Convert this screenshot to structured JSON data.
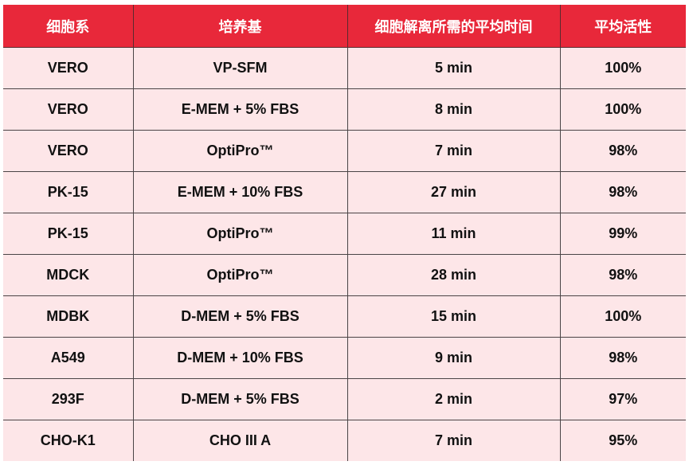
{
  "table": {
    "headers": [
      "细胞系",
      "培养基",
      "细胞解离所需的平均时间",
      "平均活性"
    ],
    "rows": [
      [
        "VERO",
        "VP-SFM",
        "5 min",
        "100%"
      ],
      [
        "VERO",
        "E-MEM + 5% FBS",
        "8 min",
        "100%"
      ],
      [
        "VERO",
        "OptiPro™",
        "7 min",
        "98%"
      ],
      [
        "PK-15",
        "E-MEM + 10% FBS",
        "27 min",
        "98%"
      ],
      [
        "PK-15",
        "OptiPro™",
        "11 min",
        "99%"
      ],
      [
        "MDCK",
        "OptiPro™",
        "28 min",
        "98%"
      ],
      [
        "MDBK",
        "D-MEM + 5% FBS",
        "15 min",
        "100%"
      ],
      [
        "A549",
        "D-MEM + 10% FBS",
        "9 min",
        "98%"
      ],
      [
        "293F",
        "D-MEM + 5% FBS",
        "2 min",
        "97%"
      ],
      [
        "CHO-K1",
        "CHO III A",
        "7 min",
        "95%"
      ]
    ]
  },
  "colors": {
    "header_bg": "#e8283a",
    "row_bg": "#fde6e8",
    "header_text": "#ffffff"
  }
}
